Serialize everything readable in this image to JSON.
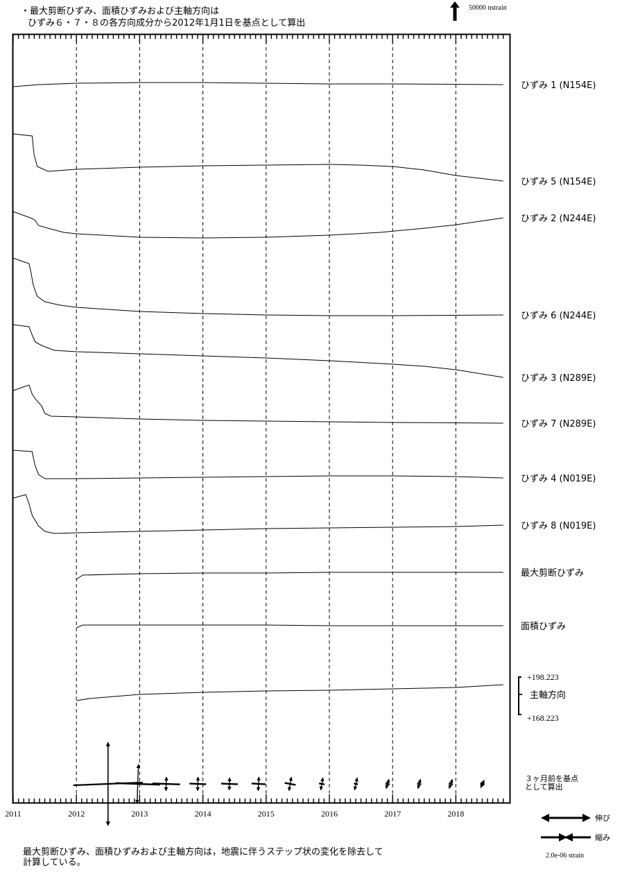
{
  "header": {
    "line1": "・最大剪断ひずみ、面積ひずみおよび主軸方向は",
    "line2": "ひずみ６・７・８の各方向成分から2012年1月1日を基点として算出"
  },
  "footer": {
    "line1": "最大剪断ひずみ、面積ひずみおよび主軸方向は，地震に伴うステップ状の変化を除去して",
    "line2": "計算している。"
  },
  "scale": {
    "strain_scale_label": "50000 nstrain",
    "principal_scale_label": "2.0e-06 strain",
    "extension_label": "伸び",
    "compression_label": "縮み"
  },
  "chart_data": {
    "type": "line",
    "x_axis": {
      "range": [
        2011,
        2018.75
      ],
      "tick_labels": [
        "2011",
        "2012",
        "2013",
        "2014",
        "2015",
        "2016",
        "2017",
        "2018"
      ],
      "grid": "dashed vertical lines at each year"
    },
    "series": [
      {
        "name": "ひずみ 1 (N154E)",
        "starts_at": 2011.0,
        "points": [
          [
            2011.0,
            0
          ],
          [
            2011.4,
            -3
          ],
          [
            2012.0,
            -5
          ],
          [
            2013.0,
            -6
          ],
          [
            2014.0,
            -6
          ],
          [
            2015.0,
            -5
          ],
          [
            2016.0,
            -4
          ],
          [
            2017.0,
            -4
          ],
          [
            2018.75,
            -3
          ]
        ]
      },
      {
        "name": "ひずみ 5 (N154E)",
        "starts_at": 2011.0,
        "points": [
          [
            2011.0,
            0
          ],
          [
            2011.3,
            3
          ],
          [
            2011.33,
            30
          ],
          [
            2011.38,
            47
          ],
          [
            2011.55,
            54
          ],
          [
            2012.0,
            51
          ],
          [
            2013.0,
            48
          ],
          [
            2014.0,
            46
          ],
          [
            2015.0,
            45
          ],
          [
            2016.0,
            44
          ],
          [
            2016.5,
            45
          ],
          [
            2017.0,
            47
          ],
          [
            2017.5,
            52
          ],
          [
            2018.0,
            60
          ],
          [
            2018.75,
            68
          ]
        ]
      },
      {
        "name": "ひずみ 2 (N244E)",
        "starts_at": 2011.0,
        "points": [
          [
            2011.0,
            0
          ],
          [
            2011.3,
            10
          ],
          [
            2011.35,
            13
          ],
          [
            2011.4,
            20
          ],
          [
            2011.55,
            24
          ],
          [
            2011.8,
            30
          ],
          [
            2012.0,
            32
          ],
          [
            2013.0,
            37
          ],
          [
            2014.0,
            38
          ],
          [
            2015.0,
            37
          ],
          [
            2016.0,
            34
          ],
          [
            2016.8,
            30
          ],
          [
            2017.5,
            24
          ],
          [
            2018.0,
            19
          ],
          [
            2018.75,
            9
          ]
        ]
      },
      {
        "name": "ひずみ 6 (N244E)",
        "starts_at": 2011.0,
        "points": [
          [
            2011.0,
            0
          ],
          [
            2011.25,
            8
          ],
          [
            2011.28,
            20
          ],
          [
            2011.32,
            40
          ],
          [
            2011.38,
            55
          ],
          [
            2011.5,
            63
          ],
          [
            2011.75,
            68
          ],
          [
            2012.0,
            71
          ],
          [
            2013.0,
            77
          ],
          [
            2014.0,
            80
          ],
          [
            2015.0,
            82
          ],
          [
            2016.0,
            83
          ],
          [
            2017.0,
            83
          ],
          [
            2018.75,
            82
          ]
        ]
      },
      {
        "name": "ひずみ 3 (N289E)",
        "starts_at": 2011.0,
        "points": [
          [
            2011.0,
            0
          ],
          [
            2011.25,
            3
          ],
          [
            2011.3,
            15
          ],
          [
            2011.35,
            25
          ],
          [
            2011.45,
            30
          ],
          [
            2011.65,
            37
          ],
          [
            2012.0,
            39
          ],
          [
            2013.0,
            42
          ],
          [
            2014.0,
            45
          ],
          [
            2015.0,
            48
          ],
          [
            2016.0,
            52
          ],
          [
            2017.0,
            57
          ],
          [
            2017.5,
            60
          ],
          [
            2018.0,
            65
          ],
          [
            2018.75,
            76
          ]
        ]
      },
      {
        "name": "ひずみ 7 (N289E)",
        "starts_at": 2011.0,
        "points": [
          [
            2011.0,
            0
          ],
          [
            2011.25,
            -8
          ],
          [
            2011.3,
            5
          ],
          [
            2011.35,
            12
          ],
          [
            2011.45,
            22
          ],
          [
            2011.5,
            33
          ],
          [
            2011.6,
            37
          ],
          [
            2012.0,
            38
          ],
          [
            2013.0,
            41
          ],
          [
            2014.0,
            43
          ],
          [
            2015.0,
            44
          ],
          [
            2016.0,
            45
          ],
          [
            2017.0,
            46
          ],
          [
            2018.75,
            47
          ]
        ]
      },
      {
        "name": "ひずみ 4 (N019E)",
        "starts_at": 2011.0,
        "points": [
          [
            2011.0,
            0
          ],
          [
            2011.3,
            2
          ],
          [
            2011.34,
            20
          ],
          [
            2011.4,
            35
          ],
          [
            2011.5,
            41
          ],
          [
            2012.0,
            41
          ],
          [
            2013.0,
            40
          ],
          [
            2014.0,
            39
          ],
          [
            2015.0,
            38
          ],
          [
            2016.0,
            37
          ],
          [
            2017.0,
            37
          ],
          [
            2018.0,
            38
          ],
          [
            2018.75,
            40
          ]
        ]
      },
      {
        "name": "ひずみ 8 (N019E)",
        "starts_at": 2011.0,
        "points": [
          [
            2011.0,
            0
          ],
          [
            2011.2,
            -5
          ],
          [
            2011.25,
            8
          ],
          [
            2011.3,
            25
          ],
          [
            2011.4,
            40
          ],
          [
            2011.5,
            48
          ],
          [
            2011.65,
            51
          ],
          [
            2012.0,
            50
          ],
          [
            2013.0,
            48
          ],
          [
            2014.0,
            46
          ],
          [
            2015.0,
            44
          ],
          [
            2016.0,
            43
          ],
          [
            2017.0,
            42
          ],
          [
            2018.0,
            41
          ],
          [
            2018.75,
            39
          ]
        ]
      },
      {
        "name": "最大剪断ひずみ",
        "starts_at": 2012.0,
        "points": [
          [
            2012.0,
            0
          ],
          [
            2012.1,
            -6
          ],
          [
            2013.0,
            -8
          ],
          [
            2014.0,
            -9
          ],
          [
            2015.0,
            -9
          ],
          [
            2016.0,
            -10
          ],
          [
            2017.0,
            -10
          ],
          [
            2018.0,
            -10
          ],
          [
            2018.75,
            -10
          ]
        ]
      },
      {
        "name": "面積ひずみ",
        "starts_at": 2012.0,
        "points": [
          [
            2012.0,
            0
          ],
          [
            2012.1,
            -4
          ],
          [
            2013.0,
            -4
          ],
          [
            2014.0,
            -4
          ],
          [
            2015.0,
            -4
          ],
          [
            2016.0,
            -3
          ],
          [
            2017.0,
            -3
          ],
          [
            2018.0,
            -3
          ],
          [
            2018.75,
            -3
          ]
        ]
      },
      {
        "name": "主軸方向",
        "starts_at": 2012.0,
        "range": [
          "+198.223",
          "+168.223"
        ],
        "points": [
          [
            2012.0,
            0
          ],
          [
            2012.2,
            -3
          ],
          [
            2013.0,
            -9
          ],
          [
            2014.0,
            -12
          ],
          [
            2015.0,
            -14
          ],
          [
            2016.0,
            -15
          ],
          [
            2017.0,
            -17
          ],
          [
            2018.0,
            -19
          ],
          [
            2018.75,
            -23
          ]
        ]
      }
    ],
    "principal_axes": {
      "label": "３ヶ月前を基点\nとして算出",
      "times": [
        2012.5,
        2012.97,
        2013.42,
        2013.92,
        2014.42,
        2014.88,
        2015.38,
        2015.88,
        2016.42,
        2016.92,
        2017.42,
        2017.92,
        2018.42
      ],
      "major_magnitude": [
        60,
        28,
        10,
        10,
        9,
        10,
        10,
        9,
        9,
        7,
        7,
        7,
        6
      ],
      "minor_magnitude": [
        50,
        32,
        20,
        12,
        12,
        10,
        8,
        4,
        3,
        3,
        3,
        3,
        3
      ],
      "major_dir_deg": [
        0,
        2,
        2,
        2,
        2,
        3,
        10,
        10,
        12,
        18,
        15,
        20,
        25
      ]
    }
  }
}
